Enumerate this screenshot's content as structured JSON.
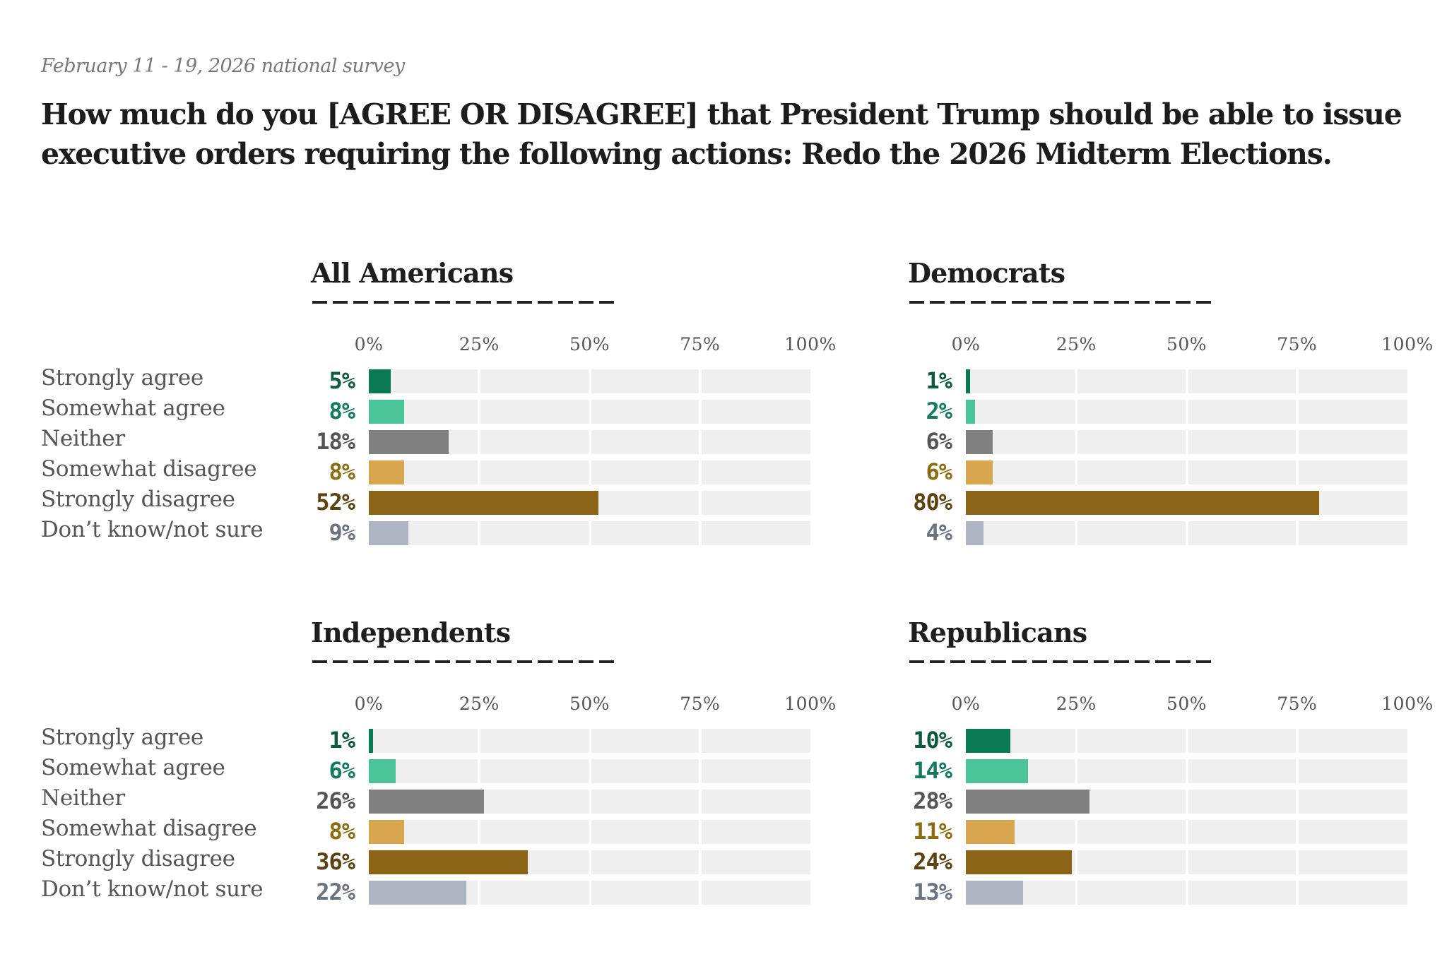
{
  "header": {
    "subtitle": "February 11 - 19, 2026 national survey",
    "title": "How much do you [AGREE OR DISAGREE] that President Trump should be able to issue executive orders requiring the following actions: Redo the 2026 Midterm Elections."
  },
  "colors": {
    "strongly_agree": "#0a7a55",
    "somewhat_agree": "#4cc49a",
    "neither": "#808080",
    "somewhat_disagree": "#d9a650",
    "strongly_disagree": "#8b6418",
    "dont_know": "#aeb4c2",
    "label_strongly_agree": "#0d5a40",
    "label_somewhat_agree": "#137a5e",
    "label_neither": "#555555",
    "label_somewhat_disagree": "#8a6d10",
    "label_strongly_disagree": "#5a4310",
    "label_dont_know": "#6b7280",
    "track": "#efefef"
  },
  "chart_data": [
    {
      "type": "bar",
      "orientation": "horizontal",
      "title": "All Americans",
      "categories": [
        "Strongly agree",
        "Somewhat agree",
        "Neither",
        "Somewhat disagree",
        "Strongly disagree",
        "Don’t know/not sure"
      ],
      "values": [
        5,
        8,
        18,
        8,
        52,
        9
      ],
      "value_labels": [
        "5%",
        "8%",
        "18%",
        "8%",
        "52%",
        "9%"
      ],
      "xlim": [
        0,
        100
      ],
      "xticks": [
        "0%",
        "25%",
        "50%",
        "75%",
        "100%"
      ],
      "xlabel": "",
      "ylabel": "",
      "grid": true,
      "show_category_labels": true
    },
    {
      "type": "bar",
      "orientation": "horizontal",
      "title": "Democrats",
      "categories": [
        "Strongly agree",
        "Somewhat agree",
        "Neither",
        "Somewhat disagree",
        "Strongly disagree",
        "Don’t know/not sure"
      ],
      "values": [
        1,
        2,
        6,
        6,
        80,
        4
      ],
      "value_labels": [
        "1%",
        "2%",
        "6%",
        "6%",
        "80%",
        "4%"
      ],
      "xlim": [
        0,
        100
      ],
      "xticks": [
        "0%",
        "25%",
        "50%",
        "75%",
        "100%"
      ],
      "xlabel": "",
      "ylabel": "",
      "grid": true,
      "show_category_labels": false
    },
    {
      "type": "bar",
      "orientation": "horizontal",
      "title": "Independents",
      "categories": [
        "Strongly agree",
        "Somewhat agree",
        "Neither",
        "Somewhat disagree",
        "Strongly disagree",
        "Don’t know/not sure"
      ],
      "values": [
        1,
        6,
        26,
        8,
        36,
        22
      ],
      "value_labels": [
        "1%",
        "6%",
        "26%",
        "8%",
        "36%",
        "22%"
      ],
      "xlim": [
        0,
        100
      ],
      "xticks": [
        "0%",
        "25%",
        "50%",
        "75%",
        "100%"
      ],
      "xlabel": "",
      "ylabel": "",
      "grid": true,
      "show_category_labels": true
    },
    {
      "type": "bar",
      "orientation": "horizontal",
      "title": "Republicans",
      "categories": [
        "Strongly agree",
        "Somewhat agree",
        "Neither",
        "Somewhat disagree",
        "Strongly disagree",
        "Don’t know/not sure"
      ],
      "values": [
        10,
        14,
        28,
        11,
        24,
        13
      ],
      "value_labels": [
        "10%",
        "14%",
        "28%",
        "11%",
        "24%",
        "13%"
      ],
      "xlim": [
        0,
        100
      ],
      "xticks": [
        "0%",
        "25%",
        "50%",
        "75%",
        "100%"
      ],
      "xlabel": "",
      "ylabel": "",
      "grid": true,
      "show_category_labels": false
    }
  ]
}
